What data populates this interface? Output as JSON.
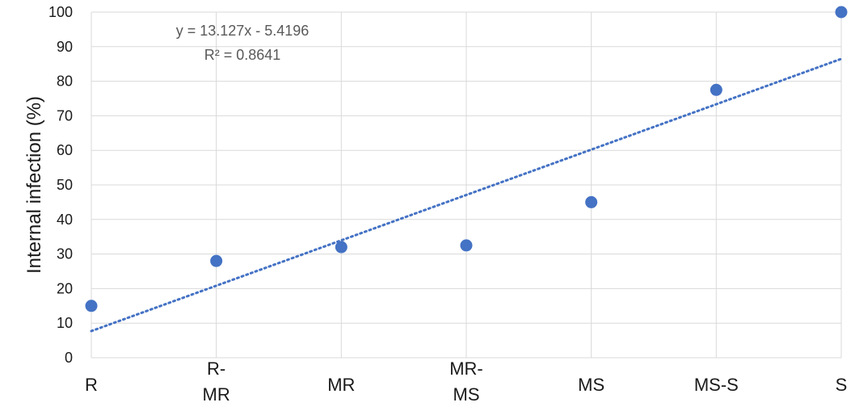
{
  "chart_data": {
    "type": "scatter",
    "categories": [
      "R",
      "R-MR",
      "MR",
      "MR-MS",
      "MS",
      "MS-S",
      "S"
    ],
    "category_label_lines": [
      [
        "R"
      ],
      [
        "R-",
        "MR"
      ],
      [
        "MR"
      ],
      [
        "MR-",
        "MS"
      ],
      [
        "MS"
      ],
      [
        "MS-S"
      ],
      [
        "S"
      ]
    ],
    "x": [
      1,
      2,
      3,
      4,
      5,
      6,
      7
    ],
    "values": [
      15,
      28,
      32,
      32.5,
      45,
      77.5,
      100
    ],
    "ylabel": "Internal infection (%)",
    "ylim": [
      0,
      100
    ],
    "yticks": [
      0,
      10,
      20,
      30,
      40,
      50,
      60,
      70,
      80,
      90,
      100
    ],
    "grid": true,
    "trendline": {
      "type": "linear",
      "slope": 13.127,
      "intercept": -5.4196,
      "style": "dotted",
      "equation_label": "y = 13.127x - 5.4196",
      "r2_label": "R² = 0.8641"
    },
    "colors": {
      "marker": "#4472C4",
      "trendline": "#4472C4",
      "grid": "#d9d9d9"
    }
  }
}
